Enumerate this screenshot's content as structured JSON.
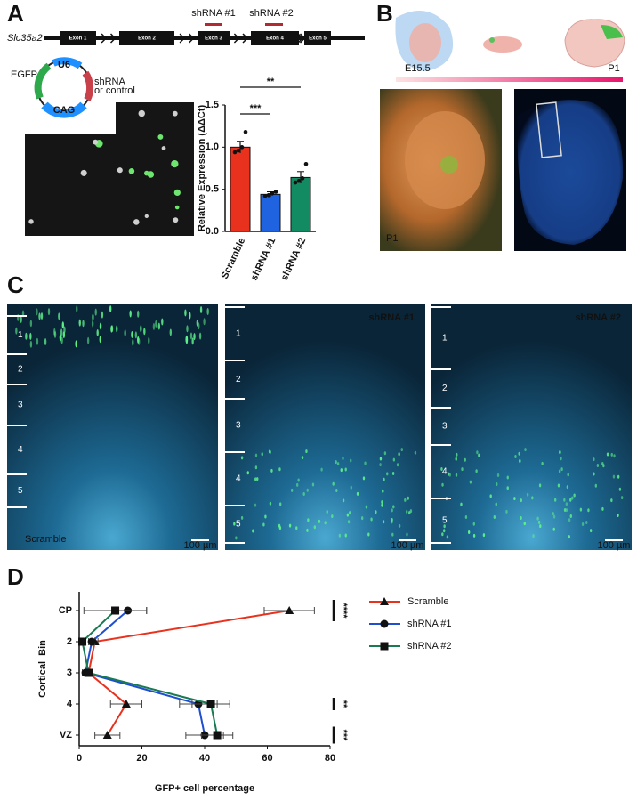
{
  "panels": {
    "a": "A",
    "b": "B",
    "c": "C",
    "d": "D"
  },
  "gene": {
    "name": "Slc35a2",
    "exons": [
      "Exon 1",
      "Exon 2",
      "Exon 3",
      "Exon 4",
      "Exon 5"
    ],
    "shrna": [
      "shRNA #1",
      "shRNA #2"
    ]
  },
  "plasmid": {
    "egfp": "EGFP",
    "u6": "U6",
    "shrna": "shRNA",
    "shrna_note": "or control",
    "cag": "CAG"
  },
  "timeline": {
    "start": "E15.5",
    "end": "P1"
  },
  "photo_label": "P1",
  "sections": [
    {
      "label": "Scramble",
      "layers": [
        "1",
        "2",
        "3",
        "4",
        "5"
      ],
      "scale": "100 µm"
    },
    {
      "label": "shRNA #1",
      "layers": [
        "1",
        "2",
        "3",
        "4",
        "5"
      ],
      "scale": "100 µm"
    },
    {
      "label": "shRNA #2",
      "layers": [
        "1",
        "2",
        "3",
        "4",
        "5"
      ],
      "scale": "100 µm"
    }
  ],
  "chart_data": [
    {
      "type": "bar",
      "categories": [
        "Scramble",
        "shRNA #1",
        "shRNA #2"
      ],
      "values": [
        1.0,
        0.44,
        0.64
      ],
      "errors": [
        0.07,
        0.03,
        0.07
      ],
      "points": [
        [
          0.94,
          0.96,
          1.0,
          1.18
        ],
        [
          0.42,
          0.43,
          0.45,
          0.47
        ],
        [
          0.58,
          0.6,
          0.63,
          0.8
        ]
      ],
      "colors": [
        "#e8321e",
        "#1f63e0",
        "#128a62"
      ],
      "ylabel": "Relative Expression (ΔΔCt)",
      "ylim": [
        0,
        1.5
      ],
      "yticks": [
        {
          "value": 0,
          "label": "0.0"
        },
        {
          "value": 0.5,
          "label": "0.5"
        },
        {
          "value": 1,
          "label": "1.0"
        },
        {
          "value": 1.5,
          "label": "1.5"
        }
      ],
      "significance": [
        {
          "label": "***",
          "from": "Scramble",
          "to": "shRNA #1"
        },
        {
          "label": "**",
          "from": "Scramble",
          "to": "shRNA #2"
        }
      ]
    },
    {
      "type": "line",
      "categories": [
        "CP",
        "2",
        "3",
        "4",
        "VZ"
      ],
      "series": [
        {
          "name": "Scramble",
          "color": "#e8321e",
          "marker": "triangle",
          "values": [
            67,
            5,
            3,
            15,
            9
          ],
          "errors": [
            8,
            1,
            1,
            5,
            4
          ]
        },
        {
          "name": "shRNA #1",
          "color": "#1f4fd0",
          "marker": "circle",
          "values": [
            15.5,
            4,
            2,
            38,
            40
          ],
          "errors": [
            6,
            1,
            1,
            6,
            6
          ]
        },
        {
          "name": "shRNA #2",
          "color": "#1a7a52",
          "marker": "square",
          "values": [
            11.5,
            1,
            3,
            42,
            44
          ],
          "errors": [
            10,
            1,
            1,
            6,
            5
          ]
        }
      ],
      "xlabel": "GFP+ cell percentage",
      "ylabel": "Cortical  Bin",
      "xlim": [
        0,
        80
      ],
      "xticks": [
        0,
        20,
        40,
        60,
        80
      ],
      "significance": [
        {
          "label": "****",
          "category": "CP"
        },
        {
          "label": "**",
          "category": "4"
        },
        {
          "label": "***",
          "category": "VZ"
        }
      ],
      "legend": "right"
    }
  ]
}
